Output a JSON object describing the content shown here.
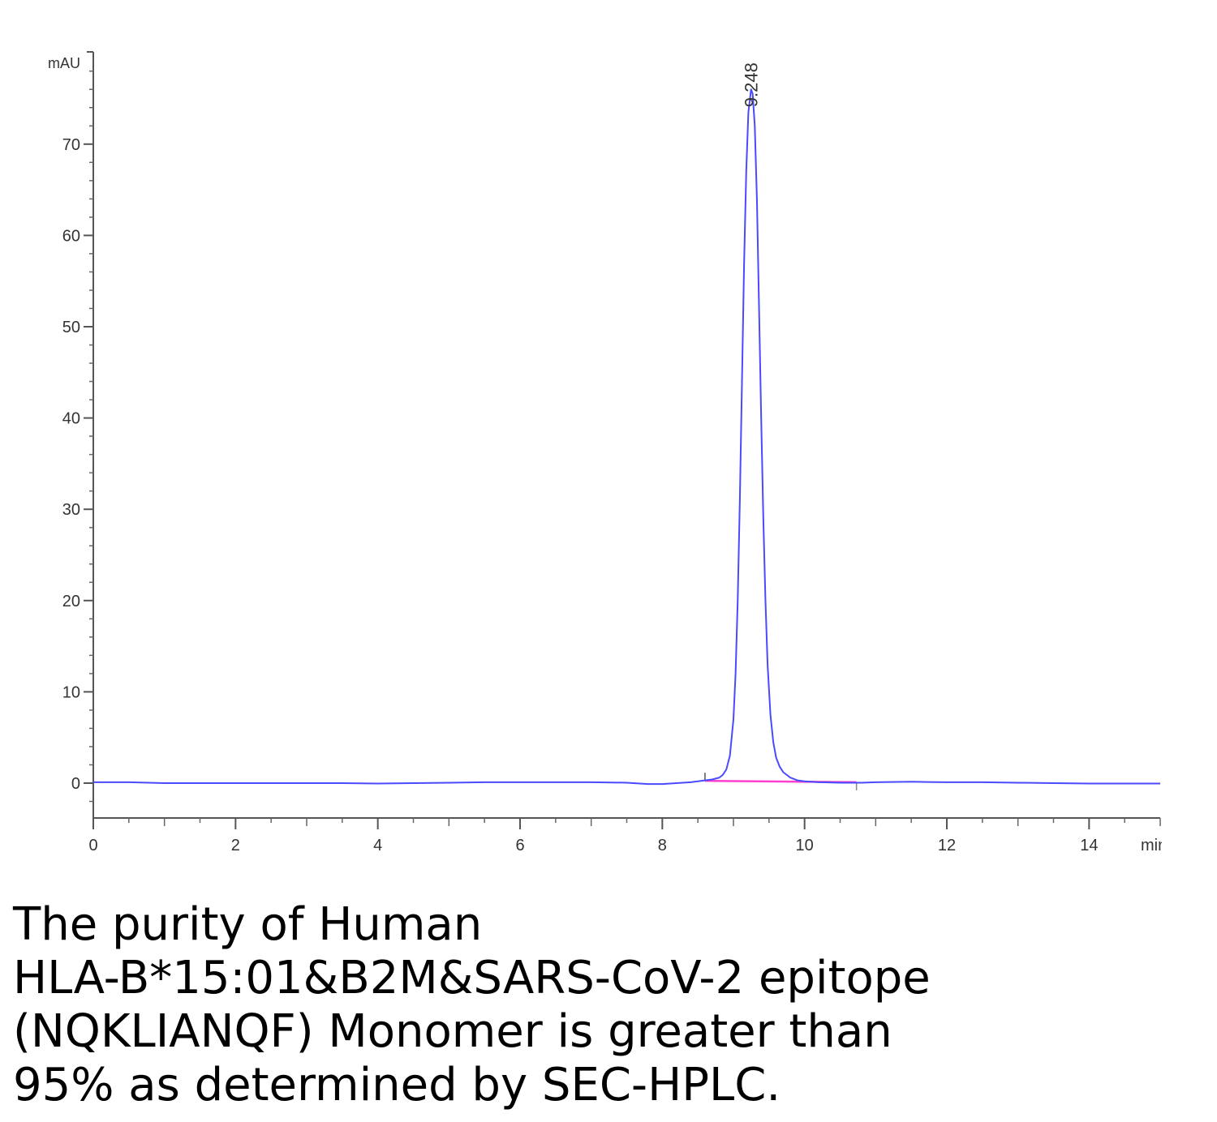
{
  "chart_data": {
    "type": "line",
    "ylabel": "mAU",
    "xlabel": "min",
    "xlim": [
      0,
      15
    ],
    "ylim": [
      -4,
      80
    ],
    "x_ticks": [
      0,
      2,
      4,
      6,
      8,
      10,
      12,
      14
    ],
    "y_ticks": [
      0,
      10,
      20,
      30,
      40,
      50,
      60,
      70
    ],
    "grid": false,
    "legend": "none",
    "peak": {
      "time": 9.248,
      "label": "9.248",
      "height": 76
    },
    "baseline_segment": {
      "x_start": 8.6,
      "x_end": 10.73
    },
    "series": [
      {
        "color": "#4a4aff",
        "x": [
          0,
          0.5,
          1,
          1.5,
          2,
          2.5,
          3,
          3.5,
          4,
          4.5,
          5,
          5.5,
          6,
          6.5,
          7,
          7.5,
          7.8,
          8.0,
          8.2,
          8.4,
          8.6,
          8.7,
          8.8,
          8.85,
          8.9,
          8.95,
          9.0,
          9.03,
          9.06,
          9.09,
          9.12,
          9.15,
          9.18,
          9.21,
          9.248,
          9.27,
          9.3,
          9.33,
          9.36,
          9.39,
          9.42,
          9.45,
          9.48,
          9.52,
          9.56,
          9.6,
          9.65,
          9.7,
          9.8,
          9.9,
          10.0,
          10.2,
          10.5,
          10.8,
          11.0,
          11.5,
          12.0,
          12.5,
          13.0,
          13.5,
          14.0,
          14.5,
          15.0
        ],
        "y": [
          0.1,
          0.1,
          0.0,
          0.0,
          0.0,
          0.0,
          0.0,
          0.0,
          -0.05,
          0.0,
          0.05,
          0.1,
          0.1,
          0.1,
          0.1,
          0.05,
          -0.1,
          -0.1,
          0.0,
          0.1,
          0.3,
          0.4,
          0.6,
          0.9,
          1.5,
          3.0,
          7.0,
          12.0,
          20.0,
          31.0,
          44.0,
          57.0,
          67.0,
          73.5,
          76.0,
          75.5,
          72.0,
          64.0,
          52.0,
          40.0,
          29.0,
          20.0,
          13.0,
          7.5,
          4.5,
          2.8,
          1.8,
          1.2,
          0.6,
          0.3,
          0.2,
          0.1,
          0.05,
          0.05,
          0.1,
          0.15,
          0.1,
          0.1,
          0.05,
          0.0,
          -0.05,
          -0.05,
          -0.05
        ]
      }
    ]
  },
  "caption": {
    "lines": [
      "The purity of Human",
      "HLA-B*15:01&B2M&SARS-CoV-2 epitope",
      "(NQKLIANQF) Monomer is greater than",
      "95% as determined by SEC-HPLC."
    ]
  }
}
